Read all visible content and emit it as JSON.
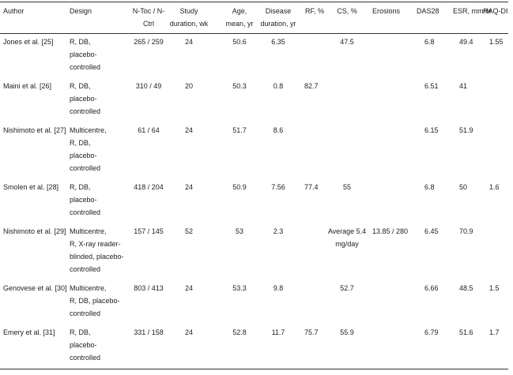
{
  "headers": {
    "author": "Author",
    "design": "Design",
    "ntoc": [
      "N-Toc / N-",
      "Ctrl"
    ],
    "duration": [
      "Study",
      "duration, wk"
    ],
    "age": [
      "Age,",
      "mean, yr"
    ],
    "disease": [
      "Disease",
      "duration, yr"
    ],
    "rf": "RF, %",
    "cs": "CS, %",
    "erosions": "Erosions",
    "das28": "DAS28",
    "esr": "ESR, mm/hr",
    "haq": "HAQ-DI"
  },
  "rows": [
    {
      "author": "Jones et al. [25]",
      "design": [
        "R, DB,",
        "placebo-",
        "controlled"
      ],
      "ntoc": "265 / 259",
      "duration": "24",
      "age": "50.6",
      "disease": "6.35",
      "rf": "",
      "cs": [
        "47.5"
      ],
      "erosions": "",
      "das28": "6.8",
      "esr": "49.4",
      "haq": "1.55"
    },
    {
      "author": "Maini et al. [26]",
      "design": [
        "R, DB,",
        "placebo-",
        "controlled"
      ],
      "ntoc": "310 / 49",
      "duration": "20",
      "age": "50.3",
      "disease": "0.8",
      "rf": "82.7",
      "cs": [
        ""
      ],
      "erosions": "",
      "das28": "6.51",
      "esr": "41",
      "haq": ""
    },
    {
      "author": "Nishimoto et al. [27]",
      "design": [
        "Multicentre,",
        "R, DB,",
        "placebo-",
        "controlled"
      ],
      "ntoc": "61 / 64",
      "duration": "24",
      "age": "51.7",
      "disease": "8.6",
      "rf": "",
      "cs": [
        ""
      ],
      "erosions": "",
      "das28": "6.15",
      "esr": "51.9",
      "haq": ""
    },
    {
      "author": "Smolen et al. [28]",
      "design": [
        "R, DB,",
        "placebo-",
        "controlled"
      ],
      "ntoc": "418 / 204",
      "duration": "24",
      "age": "50.9",
      "disease": "7.56",
      "rf": "77.4",
      "cs": [
        "55"
      ],
      "erosions": "",
      "das28": "6.8",
      "esr": "50",
      "haq": "1.6"
    },
    {
      "author": "Nishimoto et al. [29]",
      "design": [
        "Multicentre,",
        "R, X-ray reader-",
        "blinded, placebo-",
        "controlled"
      ],
      "ntoc": "157 / 145",
      "duration": "52",
      "age": "53",
      "disease": "2.3",
      "rf": "",
      "cs": [
        "Average 5.4",
        "mg/day"
      ],
      "erosions": "13.85 / 280",
      "das28": "6.45",
      "esr": "70.9",
      "haq": ""
    },
    {
      "author": "Genovese et al. [30]",
      "design": [
        "Multicentre,",
        "R, DB, placebo-",
        "controlled"
      ],
      "ntoc": "803 / 413",
      "duration": "24",
      "age": "53.3",
      "disease": "9.8",
      "rf": "",
      "cs": [
        "52.7"
      ],
      "erosions": "",
      "das28": "6.66",
      "esr": "48.5",
      "haq": "1.5"
    },
    {
      "author": "Emery et al. [31]",
      "design": [
        "R, DB,",
        "placebo-",
        "controlled"
      ],
      "ntoc": "331 / 158",
      "duration": "24",
      "age": "52.8",
      "disease": "11.7",
      "rf": "75.7",
      "cs": [
        "55.9"
      ],
      "erosions": "",
      "das28": "6.79",
      "esr": "51.6",
      "haq": "1.7"
    }
  ]
}
